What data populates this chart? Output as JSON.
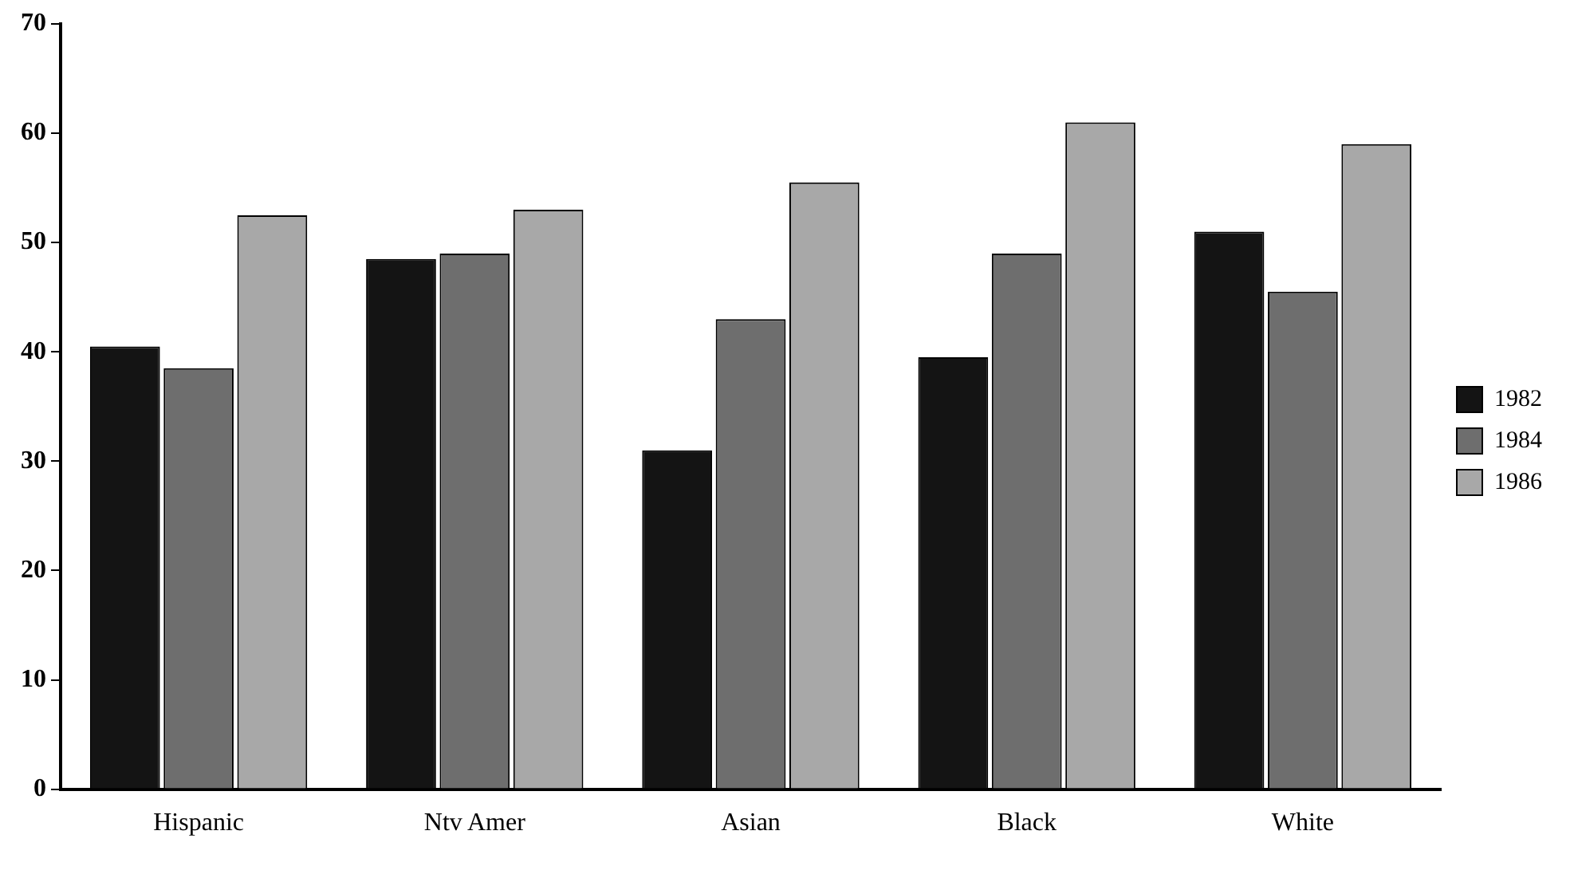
{
  "chart_data": {
    "type": "bar",
    "categories": [
      "Hispanic",
      "Ntv Amer",
      "Asian",
      "Black",
      "White"
    ],
    "series": [
      {
        "name": "1982",
        "color": "#141414",
        "values": [
          40.5,
          48.5,
          31,
          39.5,
          51
        ]
      },
      {
        "name": "1984",
        "color": "#6e6e6e",
        "values": [
          38.5,
          49,
          43,
          49,
          45.5
        ]
      },
      {
        "name": "1986",
        "color": "#a8a8a8",
        "values": [
          52.5,
          53,
          55.5,
          61,
          59
        ]
      }
    ],
    "ylim": [
      0,
      70
    ],
    "yticks": [
      0,
      10,
      20,
      30,
      40,
      50,
      60,
      70
    ],
    "grid": false,
    "legend": "right"
  }
}
